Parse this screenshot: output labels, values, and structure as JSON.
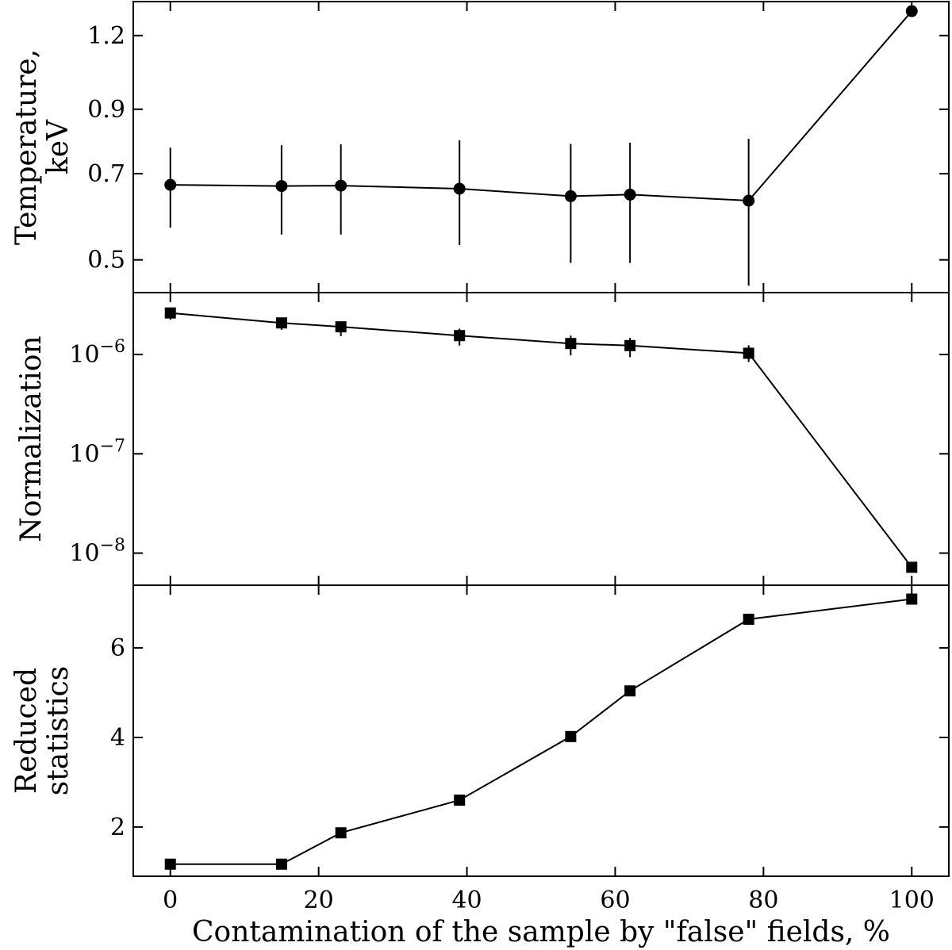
{
  "chart_data": {
    "type": "line",
    "shared_x": {
      "label": "Contamination of the sample by \"false\" fields, %",
      "lim": [
        -5,
        105
      ],
      "ticks": [
        0,
        20,
        40,
        60,
        80,
        100
      ],
      "tick_labels": [
        "0",
        "20",
        "40",
        "60",
        "80",
        "100"
      ]
    },
    "x": [
      0,
      15,
      23,
      39,
      54,
      62,
      78,
      100
    ],
    "panels": [
      {
        "id": "temperature",
        "ylabel": [
          "Temperature,",
          "keV"
        ],
        "yscale": "log",
        "ylim": [
          0.44,
          1.37
        ],
        "yticks": [
          0.5,
          0.7,
          0.9,
          1.2
        ],
        "ytick_labels": [
          "0.5",
          "0.7",
          "0.9",
          "1.2"
        ],
        "marker": "circle",
        "values": [
          0.67,
          0.667,
          0.668,
          0.66,
          0.641,
          0.645,
          0.63,
          1.32
        ],
        "err_low": [
          0.567,
          0.552,
          0.552,
          0.53,
          0.494,
          0.494,
          0.452,
          null
        ],
        "err_high": [
          0.775,
          0.782,
          0.785,
          0.797,
          0.786,
          0.79,
          0.802,
          null
        ]
      },
      {
        "id": "normalization",
        "ylabel": [
          "Normalization"
        ],
        "yscale": "log",
        "ylim": [
          4.75e-09,
          4.2e-06
        ],
        "yticks": [
          1e-08,
          1e-07,
          1e-06
        ],
        "ytick_labels": [
          {
            "base": "10",
            "exp": "−8"
          },
          {
            "base": "10",
            "exp": "−7"
          },
          {
            "base": "10",
            "exp": "−6"
          }
        ],
        "marker": "square",
        "values": [
          2.62e-06,
          2.08e-06,
          1.9e-06,
          1.55e-06,
          1.29e-06,
          1.23e-06,
          1.03e-06,
          7.2e-09
        ],
        "err_low": [
          2.24e-06,
          1.77e-06,
          1.53e-06,
          1.23e-06,
          9.8e-07,
          9.4e-07,
          8.4e-07,
          null
        ],
        "err_high": [
          2.88e-06,
          2.32e-06,
          2.15e-06,
          1.82e-06,
          1.55e-06,
          1.47e-06,
          1.24e-06,
          null
        ]
      },
      {
        "id": "reduced-statistics",
        "ylabel": [
          "Reduced",
          "statistics"
        ],
        "yscale": "linear",
        "ylim": [
          0.9,
          7.4
        ],
        "yticks": [
          2,
          4,
          6
        ],
        "ytick_labels": [
          "2",
          "4",
          "6"
        ],
        "marker": "square",
        "values": [
          1.17,
          1.17,
          1.87,
          2.6,
          4.02,
          5.04,
          6.64,
          7.09
        ]
      }
    ]
  }
}
